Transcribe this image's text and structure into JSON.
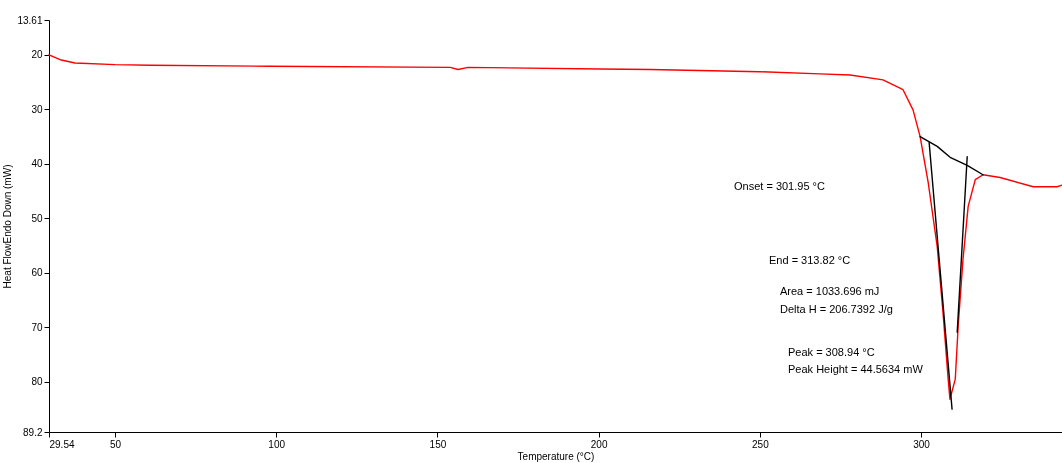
{
  "chart_data": {
    "type": "line",
    "xlabel": "Temperature (°C)",
    "ylabel": "Heat FlowEndo Down (mW)",
    "xlim": [
      29.54,
      343.7
    ],
    "xticks": [
      29.54,
      50,
      100,
      150,
      200,
      250,
      300
    ],
    "ylim": [
      89.2,
      13.61
    ],
    "yticks": [
      13.61,
      20,
      30,
      40,
      50,
      60,
      70,
      80,
      89.2
    ],
    "grid": false,
    "series": [
      {
        "color": "#ff0000",
        "x": [
          29.54,
          33,
          37.6,
          50,
          61,
          98,
          154,
          156.4,
          159.5,
          200.5,
          216,
          250,
          268.6,
          278.0,
          288.2,
          294.4,
          297.5,
          299.7,
          302.2,
          305.0,
          306.8,
          308.4,
          308.94,
          310.6,
          311.5,
          313.0,
          314.6,
          316.8,
          319.2,
          324.5,
          334.8,
          342.2,
          343.7
        ],
        "values": [
          20.0,
          20.9,
          21.5,
          21.8,
          21.9,
          22.1,
          22.3,
          22.7,
          22.3,
          22.6,
          22.7,
          23.1,
          23.5,
          23.7,
          24.6,
          26.4,
          30.1,
          35.0,
          43.4,
          55.2,
          67.3,
          79.5,
          83.2,
          79.5,
          69.8,
          57.5,
          47.8,
          42.9,
          42.0,
          42.5,
          44.2,
          44.2,
          43.9
        ]
      },
      {
        "color": "#000000",
        "x": [
          299.7,
          305.0,
          309.0,
          314.3,
          319.2
        ],
        "values": [
          35.0,
          36.8,
          38.8,
          40.3,
          42.0
        ]
      },
      {
        "color": "#000000",
        "x": [
          302.5,
          309.6
        ],
        "values": [
          36.1,
          85.0
        ]
      },
      {
        "color": "#000000",
        "x": [
          314.3,
          311.2
        ],
        "values": [
          38.7,
          70.9
        ]
      }
    ],
    "annotations": [
      "Onset = 301.95 °C",
      "End = 313.82 °C",
      "Area = 1033.696 mJ",
      "Delta H = 206.7392 J/g",
      "Peak = 308.94 °C",
      "Peak Height = 44.5634 mW"
    ]
  }
}
